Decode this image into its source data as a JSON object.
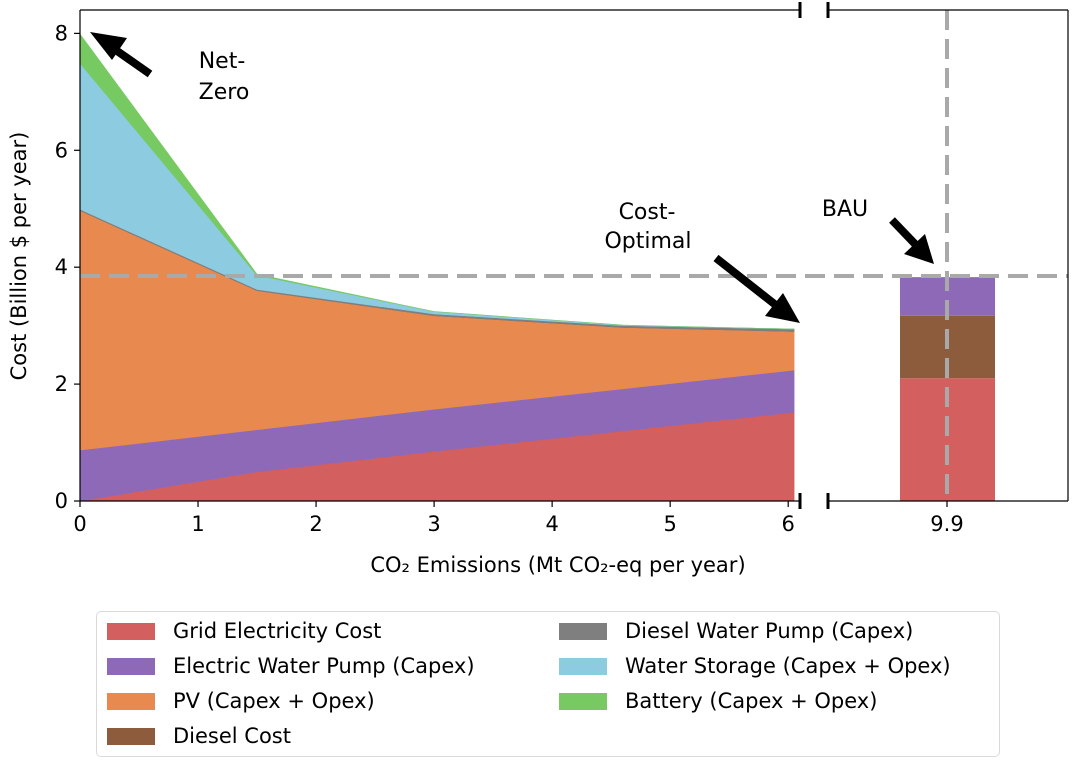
{
  "chart_data": {
    "type": "area",
    "ylabel": "Cost (Billion $ per year)",
    "xlabel": "CO₂ Emissions (Mt CO₂-eq per year)",
    "ylim": [
      0,
      8.4
    ],
    "xlim": [
      0,
      6.1
    ],
    "yticks": [
      "0",
      "2",
      "4",
      "6",
      "8"
    ],
    "xticks": [
      "0",
      "1",
      "2",
      "3",
      "4",
      "5",
      "6"
    ],
    "break_tick": "9.9",
    "x": [
      0,
      1.5,
      3.0,
      4.6,
      6.05
    ],
    "series": [
      {
        "name": "Grid Electricity Cost",
        "color": "#d35f5f",
        "values": [
          0.0,
          0.5,
          0.85,
          1.2,
          1.52
        ]
      },
      {
        "name": "Electric Water Pump (Capex)",
        "color": "#8e69b8",
        "values": [
          0.87,
          0.72,
          0.72,
          0.72,
          0.72
        ]
      },
      {
        "name": "PV (Capex + Opex)",
        "color": "#e88a50",
        "values": [
          4.1,
          2.38,
          1.6,
          1.05,
          0.66
        ]
      },
      {
        "name": "Diesel Cost",
        "color": "#8c5c3c",
        "values": [
          0.0,
          0.0,
          0.0,
          0.0,
          0.0
        ]
      },
      {
        "name": "Diesel Water Pump (Capex)",
        "color": "#7f7f7f",
        "values": [
          0.02,
          0.02,
          0.03,
          0.03,
          0.04
        ]
      },
      {
        "name": "Water Storage (Capex + Opex)",
        "color": "#8ccbe0",
        "values": [
          2.5,
          0.24,
          0.04,
          0.01,
          0.0
        ]
      },
      {
        "name": "Battery (Capex + Opex)",
        "color": "#77c962",
        "values": [
          0.5,
          0.02,
          0.0,
          0.0,
          0.0
        ]
      }
    ],
    "bau_bar": {
      "label": "9.9",
      "segments": [
        {
          "name": "Grid Electricity Cost",
          "value": 2.1
        },
        {
          "name": "Diesel Cost",
          "value": 1.07
        },
        {
          "name": "Electric Water Pump (Capex)",
          "value": 0.66
        }
      ]
    },
    "reference_line_y": 3.85,
    "annotations": {
      "net_zero": [
        "Net-",
        "Zero"
      ],
      "cost_optimal": [
        "Cost-",
        "Optimal"
      ],
      "bau": "BAU"
    },
    "legend": [
      "Grid Electricity Cost",
      "Electric Water Pump (Capex)",
      "PV (Capex + Opex)",
      "Diesel Cost",
      "Diesel Water Pump (Capex)",
      "Water Storage (Capex + Opex)",
      "Battery (Capex + Opex)"
    ]
  }
}
